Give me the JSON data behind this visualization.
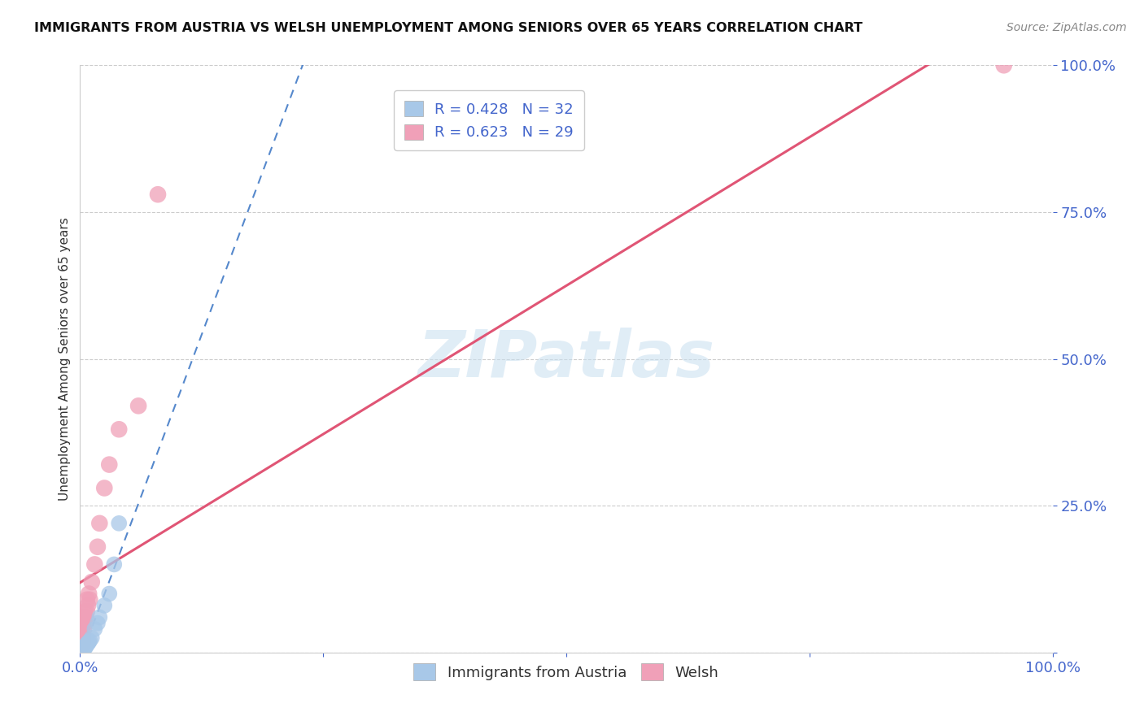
{
  "title": "IMMIGRANTS FROM AUSTRIA VS WELSH UNEMPLOYMENT AMONG SENIORS OVER 65 YEARS CORRELATION CHART",
  "source": "Source: ZipAtlas.com",
  "ylabel": "Unemployment Among Seniors over 65 years",
  "xlim": [
    0,
    1.0
  ],
  "ylim": [
    0,
    1.0
  ],
  "series1_name": "Immigrants from Austria",
  "series1_color": "#a8c8e8",
  "series1_edge_color": "#7aaad0",
  "series1_R": 0.428,
  "series1_N": 32,
  "series2_name": "Welsh",
  "series2_color": "#f0a0b8",
  "series2_edge_color": "#e07090",
  "series2_R": 0.623,
  "series2_N": 29,
  "background_color": "#ffffff",
  "grid_color": "#cccccc",
  "title_color": "#111111",
  "tick_label_color": "#4466cc",
  "watermark": "ZIPatlas",
  "series1_x": [
    0.001,
    0.001,
    0.001,
    0.001,
    0.001,
    0.002,
    0.002,
    0.002,
    0.002,
    0.002,
    0.003,
    0.003,
    0.003,
    0.003,
    0.004,
    0.004,
    0.005,
    0.005,
    0.006,
    0.006,
    0.007,
    0.008,
    0.009,
    0.01,
    0.012,
    0.015,
    0.018,
    0.02,
    0.025,
    0.03,
    0.035,
    0.04
  ],
  "series1_y": [
    0.0,
    0.0,
    0.001,
    0.002,
    0.003,
    0.002,
    0.003,
    0.004,
    0.005,
    0.006,
    0.004,
    0.005,
    0.006,
    0.008,
    0.007,
    0.009,
    0.008,
    0.01,
    0.01,
    0.012,
    0.015,
    0.015,
    0.018,
    0.02,
    0.025,
    0.04,
    0.05,
    0.06,
    0.08,
    0.1,
    0.15,
    0.22
  ],
  "series2_x": [
    0.001,
    0.001,
    0.001,
    0.002,
    0.002,
    0.002,
    0.003,
    0.003,
    0.003,
    0.004,
    0.004,
    0.005,
    0.005,
    0.006,
    0.007,
    0.007,
    0.008,
    0.009,
    0.01,
    0.012,
    0.015,
    0.018,
    0.02,
    0.025,
    0.03,
    0.04,
    0.06,
    0.08,
    0.95
  ],
  "series2_y": [
    0.01,
    0.02,
    0.03,
    0.015,
    0.025,
    0.04,
    0.02,
    0.03,
    0.05,
    0.04,
    0.06,
    0.05,
    0.07,
    0.06,
    0.07,
    0.09,
    0.08,
    0.1,
    0.09,
    0.12,
    0.15,
    0.18,
    0.22,
    0.28,
    0.32,
    0.38,
    0.42,
    0.78,
    1.0
  ],
  "series1_line_color": "#5588cc",
  "series2_line_color": "#e05575"
}
